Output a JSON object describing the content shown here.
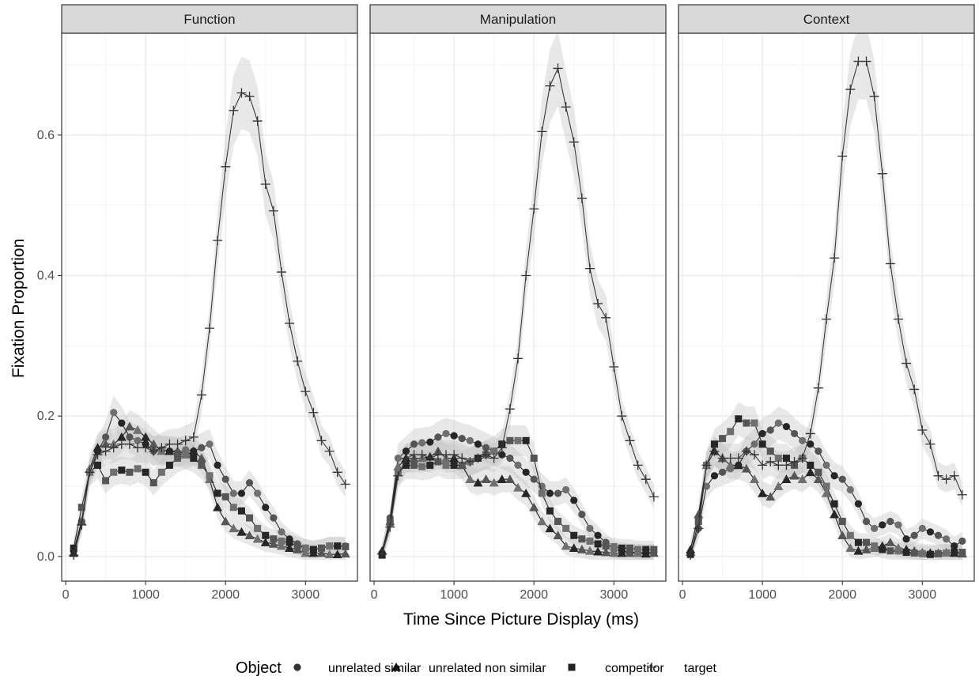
{
  "chart_data": {
    "type": "line",
    "xlabel": "Time Since Picture Display (ms)",
    "ylabel": "Fixation Proportion",
    "xlim": [
      -50,
      3650
    ],
    "ylim": [
      -0.035,
      0.745
    ],
    "xticks": [
      0,
      1000,
      2000,
      3000
    ],
    "yticks": [
      0.0,
      0.2,
      0.4,
      0.6
    ],
    "ytick_labels": [
      "0.0",
      "0.2",
      "0.4",
      "0.6"
    ],
    "grid": true,
    "confidence_band": true,
    "legend_position": "bottom",
    "legend_title": "Object",
    "legend": [
      {
        "label": "unrelated similar",
        "shape": "circle",
        "color": "#333333"
      },
      {
        "label": "unrelated non similar",
        "shape": "triangle",
        "color": "#111111"
      },
      {
        "label": "competitor",
        "shape": "square",
        "color": "#222222"
      },
      {
        "label": "target",
        "shape": "plus",
        "color": "#333333"
      }
    ],
    "x": [
      100,
      200,
      300,
      400,
      500,
      600,
      700,
      800,
      900,
      1000,
      1100,
      1200,
      1300,
      1400,
      1500,
      1600,
      1700,
      1800,
      1900,
      2000,
      2100,
      2200,
      2300,
      2400,
      2500,
      2600,
      2700,
      2800,
      2900,
      3000,
      3100,
      3200,
      3300,
      3400,
      3500
    ],
    "panels": [
      {
        "title": "Function",
        "series": [
          {
            "name": "unrelated similar",
            "values": [
              0.008,
              0.05,
              0.12,
              0.15,
              0.17,
              0.205,
              0.19,
              0.17,
              0.165,
              0.16,
              0.15,
              0.152,
              0.15,
              0.148,
              0.152,
              0.15,
              0.155,
              0.16,
              0.13,
              0.11,
              0.09,
              0.09,
              0.105,
              0.09,
              0.07,
              0.055,
              0.035,
              0.025,
              0.018,
              0.012,
              0.01,
              0.012,
              0.015,
              0.015,
              0.015
            ]
          },
          {
            "name": "unrelated non similar",
            "values": [
              0.005,
              0.05,
              0.125,
              0.155,
              0.16,
              0.16,
              0.17,
              0.185,
              0.18,
              0.17,
              0.16,
              0.15,
              0.15,
              0.15,
              0.145,
              0.15,
              0.14,
              0.11,
              0.07,
              0.05,
              0.04,
              0.035,
              0.03,
              0.025,
              0.02,
              0.018,
              0.015,
              0.012,
              0.01,
              0.005,
              0.005,
              0.005,
              0.003,
              0.003,
              0.004
            ]
          },
          {
            "name": "competitor",
            "values": [
              0.012,
              0.07,
              0.12,
              0.13,
              0.108,
              0.12,
              0.123,
              0.12,
              0.125,
              0.12,
              0.105,
              0.12,
              0.13,
              0.14,
              0.145,
              0.14,
              0.13,
              0.115,
              0.09,
              0.085,
              0.07,
              0.065,
              0.055,
              0.04,
              0.03,
              0.025,
              0.022,
              0.02,
              0.015,
              0.012,
              0.01,
              0.012,
              0.015,
              0.015,
              0.014
            ]
          },
          {
            "name": "target",
            "values": [
              0.002,
              0.045,
              0.12,
              0.145,
              0.15,
              0.155,
              0.16,
              0.16,
              0.155,
              0.155,
              0.15,
              0.155,
              0.16,
              0.16,
              0.165,
              0.17,
              0.23,
              0.325,
              0.45,
              0.555,
              0.635,
              0.66,
              0.655,
              0.62,
              0.53,
              0.492,
              0.405,
              0.332,
              0.278,
              0.235,
              0.205,
              0.165,
              0.15,
              0.12,
              0.103
            ]
          }
        ]
      },
      {
        "title": "Manipulation",
        "series": [
          {
            "name": "unrelated similar",
            "values": [
              0.005,
              0.055,
              0.14,
              0.15,
              0.16,
              0.162,
              0.163,
              0.17,
              0.175,
              0.172,
              0.168,
              0.165,
              0.16,
              0.155,
              0.15,
              0.145,
              0.14,
              0.13,
              0.12,
              0.11,
              0.1,
              0.09,
              0.09,
              0.095,
              0.08,
              0.06,
              0.04,
              0.03,
              0.02,
              0.01,
              0.008,
              0.006,
              0.006,
              0.005,
              0.006
            ]
          },
          {
            "name": "unrelated non similar",
            "values": [
              0.008,
              0.05,
              0.128,
              0.14,
              0.14,
              0.14,
              0.142,
              0.15,
              0.14,
              0.14,
              0.13,
              0.11,
              0.105,
              0.11,
              0.105,
              0.11,
              0.11,
              0.098,
              0.09,
              0.07,
              0.05,
              0.04,
              0.03,
              0.015,
              0.012,
              0.01,
              0.008,
              0.007,
              0.006,
              0.005,
              0.005,
              0.005,
              0.005,
              0.004,
              0.005
            ]
          },
          {
            "name": "competitor",
            "values": [
              0.002,
              0.048,
              0.12,
              0.13,
              0.13,
              0.128,
              0.13,
              0.135,
              0.13,
              0.13,
              0.13,
              0.135,
              0.14,
              0.145,
              0.15,
              0.16,
              0.165,
              0.165,
              0.165,
              0.14,
              0.09,
              0.065,
              0.05,
              0.04,
              0.03,
              0.025,
              0.022,
              0.018,
              0.015,
              0.014,
              0.012,
              0.012,
              0.01,
              0.01,
              0.01
            ]
          },
          {
            "name": "target",
            "values": [
              0.004,
              0.042,
              0.115,
              0.14,
              0.145,
              0.145,
              0.14,
              0.145,
              0.145,
              0.145,
              0.14,
              0.135,
              0.14,
              0.145,
              0.14,
              0.155,
              0.21,
              0.282,
              0.4,
              0.495,
              0.605,
              0.67,
              0.695,
              0.64,
              0.59,
              0.51,
              0.41,
              0.36,
              0.34,
              0.27,
              0.2,
              0.165,
              0.13,
              0.11,
              0.085
            ]
          }
        ]
      },
      {
        "title": "Context",
        "series": [
          {
            "name": "unrelated similar",
            "values": [
              0.005,
              0.04,
              0.1,
              0.115,
              0.12,
              0.125,
              0.13,
              0.15,
              0.16,
              0.175,
              0.18,
              0.19,
              0.185,
              0.175,
              0.165,
              0.16,
              0.15,
              0.13,
              0.115,
              0.11,
              0.095,
              0.075,
              0.05,
              0.04,
              0.045,
              0.05,
              0.045,
              0.025,
              0.03,
              0.04,
              0.035,
              0.03,
              0.025,
              0.015,
              0.022
            ]
          },
          {
            "name": "unrelated non similar",
            "values": [
              0.01,
              0.06,
              0.13,
              0.15,
              0.14,
              0.13,
              0.13,
              0.125,
              0.11,
              0.09,
              0.085,
              0.1,
              0.11,
              0.115,
              0.11,
              0.12,
              0.11,
              0.09,
              0.06,
              0.03,
              0.012,
              0.008,
              0.01,
              0.012,
              0.015,
              0.02,
              0.012,
              0.01,
              0.008,
              0.006,
              0.005,
              0.005,
              0.006,
              0.005,
              0.004
            ]
          },
          {
            "name": "competitor",
            "values": [
              0.003,
              0.05,
              0.13,
              0.16,
              0.168,
              0.178,
              0.196,
              0.19,
              0.19,
              0.16,
              0.15,
              0.14,
              0.14,
              0.13,
              0.14,
              0.13,
              0.12,
              0.1,
              0.075,
              0.05,
              0.03,
              0.02,
              0.02,
              0.015,
              0.01,
              0.008,
              0.008,
              0.006,
              0.005,
              0.004,
              0.003,
              0.004,
              0.005,
              0.006,
              0.006
            ]
          },
          {
            "name": "target",
            "values": [
              0.002,
              0.04,
              0.13,
              0.15,
              0.14,
              0.14,
              0.14,
              0.15,
              0.145,
              0.13,
              0.135,
              0.13,
              0.13,
              0.135,
              0.14,
              0.175,
              0.24,
              0.338,
              0.425,
              0.57,
              0.665,
              0.705,
              0.705,
              0.655,
              0.545,
              0.417,
              0.338,
              0.275,
              0.238,
              0.18,
              0.16,
              0.115,
              0.11,
              0.115,
              0.088
            ]
          }
        ]
      }
    ]
  }
}
